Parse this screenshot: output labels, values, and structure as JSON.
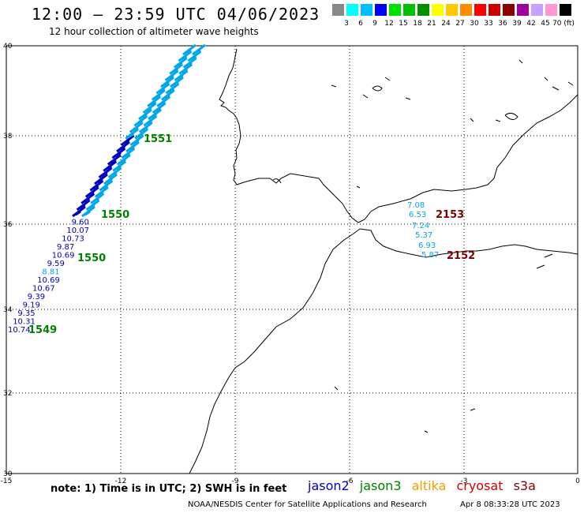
{
  "title": "12:00 – 23:59 UTC 04/06/2023",
  "subtitle": "12 hour collection of altimeter wave heights",
  "colorbar": {
    "labels": [
      "3",
      "6",
      "9",
      "12",
      "15",
      "18",
      "21",
      "24",
      "27",
      "30",
      "33",
      "36",
      "39",
      "42",
      "45",
      "70 (ft)"
    ],
    "colors": [
      "#888888",
      "#00ffff",
      "#00c0ff",
      "#0000ff",
      "#00e000",
      "#00c000",
      "#009000",
      "#ffff00",
      "#ffc800",
      "#ff8c00",
      "#ff0000",
      "#d00000",
      "#900000",
      "#a000a0",
      "#c8a0ff",
      "#ff96d8",
      "#000000"
    ]
  },
  "axes": {
    "lon_ticks": [
      "-15",
      "-12",
      "-9",
      "-6",
      "-3",
      "0"
    ],
    "lat_ticks": [
      "40",
      "38",
      "36",
      "34",
      "32",
      "30"
    ],
    "lon_range": [
      -15,
      0
    ],
    "lat_range": [
      30,
      40
    ]
  },
  "tracks": {
    "jason2_colors": [
      "#0000c0",
      "#00a8e8"
    ],
    "left_track_labels": [
      "10.74",
      "10.31",
      "9.35",
      "9.19",
      "9.39",
      "10.67",
      "10.69",
      "8.81",
      "9.59",
      "10.69",
      "9.87",
      "10.73",
      "10.07",
      "9.60"
    ],
    "right_track_labels": [
      "7.08",
      "6.53",
      "7.24",
      "5.37",
      "6.93",
      "5.87"
    ],
    "pass_labels": {
      "p1549": "1549",
      "p1550a": "1550",
      "p1550b": "1550",
      "p1551": "1551",
      "p2153": "2153",
      "p2152": "2152"
    }
  },
  "note": "note: 1) Time is in UTC; 2) SWH is in feet",
  "legend": {
    "jason2": "jason2",
    "jason3": "jason3",
    "altika": "altika",
    "cryosat": "cryosat",
    "s3a": "s3a",
    "colors": {
      "jason2": "#0000d0",
      "jason3": "#008000",
      "altika": "#ff9900",
      "cryosat": "#d00000",
      "s3a": "#800000"
    }
  },
  "credit": "NOAA/NESDIS Center for Satellite Applications and Research",
  "credit_date": "Apr  8 08:33:28 UTC 2023"
}
